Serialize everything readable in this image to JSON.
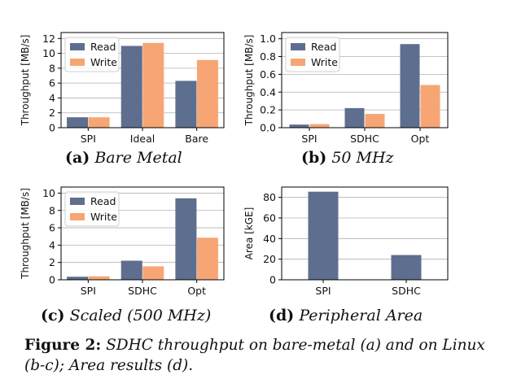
{
  "colors": {
    "read": "#5e6e8e",
    "write": "#f7a574",
    "frame": "#000000",
    "grid": "#b0b0b0"
  },
  "chart_data": [
    {
      "type": "bar",
      "id": "a",
      "categories": [
        "SPI",
        "Ideal",
        "Bare"
      ],
      "series": [
        {
          "name": "Read",
          "values": [
            1.4,
            11.0,
            6.3
          ]
        },
        {
          "name": "Write",
          "values": [
            1.4,
            11.4,
            9.1
          ]
        }
      ],
      "ylabel": "Throughput [MB/s]",
      "ylim": [
        0,
        12.8
      ],
      "yticks": [
        "0",
        "2",
        "4",
        "6",
        "8",
        "10",
        "12"
      ],
      "ytick_values": [
        0,
        2,
        4,
        6,
        8,
        10,
        12
      ],
      "legend": "top-left",
      "grid": true
    },
    {
      "type": "bar",
      "id": "b",
      "categories": [
        "SPI",
        "SDHC",
        "Opt"
      ],
      "series": [
        {
          "name": "Read",
          "values": [
            0.035,
            0.22,
            0.94
          ]
        },
        {
          "name": "Write",
          "values": [
            0.04,
            0.155,
            0.48
          ]
        }
      ],
      "ylabel": "Throughput [MB/s]",
      "ylim": [
        0,
        1.07
      ],
      "yticks": [
        "0.0",
        "0.2",
        "0.4",
        "0.6",
        "0.8",
        "1.0"
      ],
      "ytick_values": [
        0,
        0.2,
        0.4,
        0.6,
        0.8,
        1.0
      ],
      "legend": "top-left",
      "grid": true
    },
    {
      "type": "bar",
      "id": "c",
      "categories": [
        "SPI",
        "SDHC",
        "Opt"
      ],
      "series": [
        {
          "name": "Read",
          "values": [
            0.35,
            2.2,
            9.4
          ]
        },
        {
          "name": "Write",
          "values": [
            0.4,
            1.55,
            4.85
          ]
        }
      ],
      "ylabel": "Throughput [MB/s]",
      "ylim": [
        0,
        10.7
      ],
      "yticks": [
        "0",
        "2",
        "4",
        "6",
        "8",
        "10"
      ],
      "ytick_values": [
        0,
        2,
        4,
        6,
        8,
        10
      ],
      "legend": "top-left",
      "grid": true
    },
    {
      "type": "bar",
      "id": "d",
      "categories": [
        "SPI",
        "SDHC"
      ],
      "series": [
        {
          "name": "Area",
          "values": [
            85.5,
            24
          ]
        }
      ],
      "ylabel": "Area [kGE]",
      "ylim": [
        0,
        90
      ],
      "yticks": [
        "0",
        "20",
        "40",
        "60",
        "80"
      ],
      "ytick_values": [
        0,
        20,
        40,
        60,
        80
      ],
      "legend": "none",
      "grid": true
    }
  ],
  "subcaptions": [
    {
      "label": "(a)",
      "text": "Bare Metal"
    },
    {
      "label": "(b)",
      "text": "50 MHz"
    },
    {
      "label": "(c)",
      "text": "Scaled (500 MHz)"
    },
    {
      "label": "(d)",
      "text": "Peripheral Area"
    }
  ],
  "caption": {
    "label": "Figure 2:",
    "text": "SDHC throughput on bare-metal (a) and on Linux (b-c); Area results (d)."
  }
}
